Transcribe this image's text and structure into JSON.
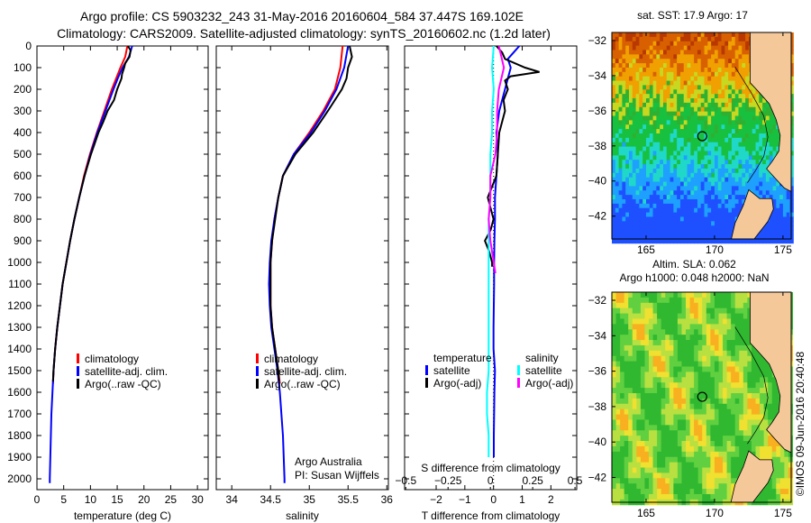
{
  "title_lines": [
    "Argo profile: CS 5903232_243 31-May-2016 20160604_584 37.447S 169.102E",
    "Climatology: CARS2009. Satellite-adjusted climatology: synTS_20160602.nc (1.2d later)"
  ],
  "credit": "©IMOS 09-Jun-2016 20:40:48",
  "attribution": [
    "Argo Australia",
    "PI: Susan Wijffels"
  ],
  "chart_data": [
    {
      "type": "line",
      "id": "temperature",
      "xlabel": "temperature (deg C)",
      "ylabel": "",
      "xlim": [
        0,
        32
      ],
      "ylim": [
        2050,
        0
      ],
      "xticks": [
        0,
        5,
        10,
        15,
        20,
        25,
        30
      ],
      "yticks": [
        0,
        100,
        200,
        300,
        400,
        500,
        600,
        700,
        800,
        900,
        1000,
        1100,
        1200,
        1300,
        1400,
        1500,
        1600,
        1700,
        1800,
        1900,
        2000
      ],
      "legend": {
        "placement": "lower-center",
        "entries": [
          {
            "label": "climatology",
            "color": "#ff0000"
          },
          {
            "label": "satellite-adj. clim.",
            "color": "#0000ff"
          },
          {
            "label": "Argo(..raw -QC)",
            "color": "#000000"
          }
        ]
      },
      "series": [
        {
          "name": "climatology",
          "color": "#ff0000",
          "depth": [
            0,
            50,
            100,
            150,
            200,
            300,
            400,
            500,
            600,
            700,
            800,
            900,
            1000,
            1100,
            1200,
            1300,
            1400,
            1500,
            1560
          ],
          "values": [
            16.9,
            16.5,
            15.6,
            14.8,
            14.0,
            12.6,
            11.2,
            9.9,
            8.8,
            7.9,
            7.0,
            6.2,
            5.5,
            4.8,
            4.3,
            3.8,
            3.4,
            3.1,
            3.0
          ]
        },
        {
          "name": "satellite-adj. clim.",
          "color": "#0000ff",
          "depth": [
            0,
            50,
            100,
            150,
            200,
            300,
            400,
            500,
            600,
            700,
            800,
            900,
            1000,
            1100,
            1200,
            1300,
            1400,
            1500,
            1600,
            1700,
            1800,
            1900,
            2000,
            2020
          ],
          "values": [
            17.8,
            17.2,
            16.0,
            15.1,
            14.3,
            12.8,
            11.3,
            10.0,
            8.9,
            7.9,
            7.0,
            6.2,
            5.5,
            4.8,
            4.3,
            3.8,
            3.4,
            3.1,
            2.9,
            2.7,
            2.6,
            2.5,
            2.4,
            2.4
          ]
        },
        {
          "name": "Argo(..raw -QC)",
          "color": "#000000",
          "depth": [
            0,
            20,
            50,
            80,
            100,
            130,
            150,
            200,
            250,
            300,
            350,
            400,
            500,
            600,
            700,
            800,
            900,
            1000,
            1100,
            1200,
            1300,
            1400,
            1500,
            1550
          ],
          "values": [
            17.0,
            17.5,
            17.3,
            16.5,
            16.3,
            15.9,
            15.8,
            15.0,
            14.4,
            13.2,
            12.4,
            11.5,
            10.1,
            8.9,
            7.9,
            7.0,
            6.2,
            5.5,
            4.8,
            4.3,
            3.8,
            3.4,
            3.1,
            3.0
          ]
        }
      ]
    },
    {
      "type": "line",
      "id": "salinity",
      "xlabel": "salinity",
      "xlim": [
        33.8,
        36.02
      ],
      "ylim": [
        2050,
        0
      ],
      "xticks": [
        34,
        34.5,
        35,
        35.5,
        36
      ],
      "legend": {
        "placement": "lower-center",
        "entries": [
          {
            "label": "climatology",
            "color": "#ff0000"
          },
          {
            "label": "satellite-adj. clim.",
            "color": "#0000ff"
          },
          {
            "label": "Argo(..raw -QC)",
            "color": "#000000"
          }
        ]
      },
      "series": [
        {
          "name": "climatology",
          "color": "#ff0000",
          "depth": [
            0,
            100,
            200,
            300,
            400,
            500,
            600,
            700,
            800,
            900,
            1000,
            1100,
            1200,
            1300,
            1400,
            1500,
            1560
          ],
          "values": [
            35.43,
            35.4,
            35.33,
            35.18,
            35.0,
            34.8,
            34.66,
            34.6,
            34.55,
            34.52,
            34.5,
            34.5,
            34.5,
            34.52,
            34.56,
            34.6,
            34.62
          ]
        },
        {
          "name": "satellite-adj. clim.",
          "color": "#0000ff",
          "depth": [
            0,
            100,
            200,
            300,
            400,
            500,
            600,
            700,
            800,
            900,
            1000,
            1100,
            1200,
            1300,
            1400,
            1500,
            1600,
            1700,
            1800,
            1900,
            2000,
            2020
          ],
          "values": [
            35.5,
            35.45,
            35.35,
            35.2,
            35.02,
            34.8,
            34.66,
            34.6,
            34.55,
            34.51,
            34.49,
            34.48,
            34.49,
            34.51,
            34.55,
            34.59,
            34.62,
            34.64,
            34.66,
            34.67,
            34.68,
            34.68
          ]
        },
        {
          "name": "Argo(..raw -QC)",
          "color": "#000000",
          "depth": [
            0,
            50,
            100,
            150,
            200,
            300,
            400,
            500,
            600,
            700,
            800,
            900,
            1000,
            1100,
            1200,
            1300,
            1400,
            1500,
            1550
          ],
          "values": [
            35.52,
            35.55,
            35.5,
            35.48,
            35.42,
            35.24,
            35.05,
            34.82,
            34.66,
            34.6,
            34.56,
            34.52,
            34.5,
            34.5,
            34.5,
            34.52,
            34.56,
            34.6,
            34.61
          ]
        }
      ]
    },
    {
      "type": "line",
      "id": "difference",
      "xlabel": "T difference from climatology",
      "x2label": "S difference from climatology",
      "xlim": [
        -3.1,
        2.9
      ],
      "ylim": [
        2050,
        0
      ],
      "xticks": [
        -2,
        -1,
        0,
        1,
        2
      ],
      "x2ticks": [
        -0.5,
        -0.25,
        0,
        0.25,
        0.5
      ],
      "x2lim": [
        -0.5068,
        0.5102
      ],
      "legend": {
        "placement": "lower-center",
        "groups": [
          {
            "heading": "temperature",
            "entries": [
              {
                "label": "satellite",
                "color": "#0000ff"
              },
              {
                "label": "Argo(-adj)",
                "color": "#000000"
              }
            ]
          },
          {
            "heading": "salinity",
            "entries": [
              {
                "label": "satellite",
                "color": "#00ffff"
              },
              {
                "label": "Argo(-adj)",
                "color": "#ff00ff"
              }
            ]
          }
        ]
      },
      "series": [
        {
          "name": "temperature satellite",
          "axis": "T",
          "color": "#0000ff",
          "depth": [
            0,
            30,
            60,
            100,
            150,
            200,
            300,
            400,
            500,
            600,
            700,
            800,
            900,
            1000,
            1100,
            1200,
            1300,
            1400,
            1500,
            1600,
            1700,
            1800,
            1900
          ],
          "values": [
            0.9,
            0.7,
            0.5,
            0.6,
            0.5,
            0.4,
            0.2,
            0.1,
            0.15,
            0.1,
            0.05,
            0.05,
            0.03,
            0.02,
            0.02,
            0.01,
            0.0,
            0.0,
            0.05,
            0.03,
            0.02,
            0.01,
            0.01
          ]
        },
        {
          "name": "temperature Argo(-adj)",
          "axis": "T",
          "color": "#000000",
          "depth": [
            0,
            30,
            60,
            100,
            120,
            140,
            160,
            200,
            250,
            300,
            400,
            500,
            600,
            700,
            750,
            800,
            850,
            900,
            950,
            1000,
            1020
          ],
          "values": [
            0.1,
            0.3,
            0.4,
            1.1,
            1.6,
            0.6,
            0.4,
            0.5,
            0.35,
            0.4,
            0.2,
            0.15,
            0.1,
            -0.2,
            -0.1,
            0.0,
            -0.1,
            -0.3,
            -0.15,
            -0.05,
            -0.05
          ]
        },
        {
          "name": "salinity satellite",
          "axis": "S",
          "color": "#00ffff",
          "depth": [
            0,
            100,
            200,
            300,
            400,
            500,
            600,
            700,
            800,
            900,
            1000,
            1100,
            1200,
            1300,
            1400,
            1500,
            1600,
            1700,
            1800,
            1900
          ],
          "values": [
            0.02,
            0.01,
            0.02,
            0.01,
            0.01,
            0.0,
            0.0,
            0.0,
            -0.01,
            -0.01,
            -0.01,
            -0.01,
            -0.01,
            -0.01,
            -0.01,
            -0.01,
            -0.02,
            -0.02,
            -0.01,
            -0.01
          ]
        },
        {
          "name": "salinity Argo(-adj)",
          "axis": "S",
          "color": "#ff00ff",
          "depth": [
            0,
            100,
            200,
            300,
            400,
            500,
            600,
            700,
            800,
            900,
            1000,
            1050
          ],
          "values": [
            0.05,
            0.08,
            0.05,
            0.04,
            0.04,
            0.03,
            0.0,
            0.0,
            -0.01,
            0.0,
            0.02,
            0.03
          ]
        }
      ]
    },
    {
      "type": "heatmap",
      "id": "sst-map",
      "title": "sat. SST: 17.9 Argo: 17",
      "xlim": [
        162.5,
        175.6
      ],
      "ylim": [
        -43.3,
        -31.54
      ],
      "xticks": [
        165,
        170,
        175
      ],
      "yticks": [
        -32,
        -34,
        -36,
        -38,
        -40,
        -42
      ],
      "argo_position": [
        169.102,
        -37.447
      ]
    },
    {
      "type": "heatmap",
      "id": "sla-map",
      "title_lines": [
        "Altim. SLA: 0.062",
        "Argo h1000: 0.048 h2000: NaN"
      ],
      "xlim": [
        162.5,
        175.6
      ],
      "ylim": [
        -43.4,
        -31.54
      ],
      "xticks": [
        165,
        170,
        175
      ],
      "yticks": [
        -32,
        -34,
        -36,
        -38,
        -40,
        -42
      ],
      "argo_position": [
        169.102,
        -37.447
      ]
    }
  ]
}
